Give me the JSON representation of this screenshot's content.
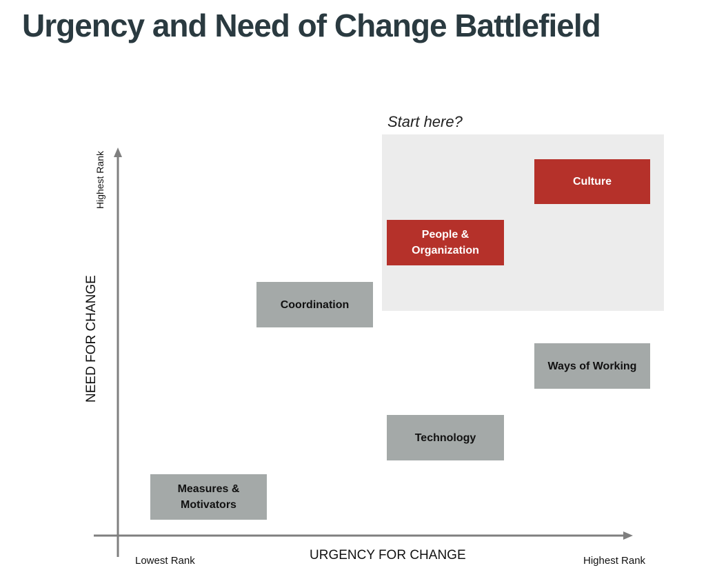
{
  "title": "Urgency and Need of Change Battlefield",
  "highlight": {
    "label": "Start here?"
  },
  "axes": {
    "y_title": "NEED FOR CHANGE",
    "y_high": "Highest Rank",
    "x_title": "URGENCY FOR CHANGE",
    "x_low": "Lowest Rank",
    "x_high": "Highest Rank"
  },
  "items": [
    {
      "label": "Culture",
      "category": "priority"
    },
    {
      "label": "People & Organization",
      "category": "priority"
    },
    {
      "label": "Coordination",
      "category": "other"
    },
    {
      "label": "Ways of Working",
      "category": "other"
    },
    {
      "label": "Technology",
      "category": "other"
    },
    {
      "label": "Measures & Motivators",
      "category": "other"
    }
  ],
  "colors": {
    "title": "#2a3a40",
    "priority": "#b5312a",
    "other": "#a4a9a8",
    "highlight_zone": "#ececec",
    "axis": "#7f7f7f"
  }
}
